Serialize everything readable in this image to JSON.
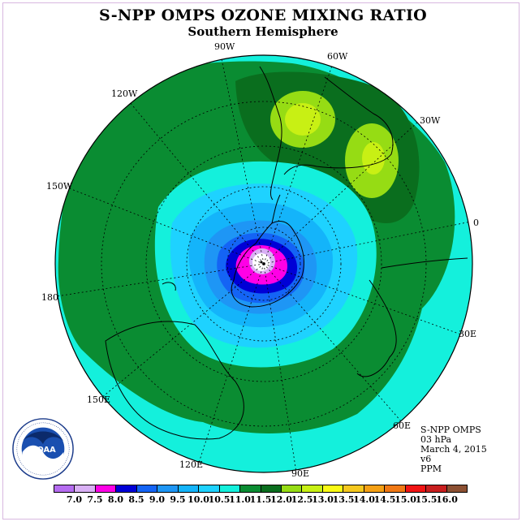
{
  "title": "S-NPP OMPS OZONE MIXING RATIO",
  "subtitle": "Southern Hemisphere",
  "info": {
    "line1": "S-NPP OMPS",
    "line2": "03 hPa",
    "line3": "March 4, 2015",
    "line4": "v6",
    "line5": "PPM"
  },
  "longitude_labels": {
    "w90": "90W",
    "w60": "60W",
    "w30": "30W",
    "e0": "0",
    "e30": "30E",
    "e60": "60E",
    "e90": "90E",
    "e120": "120E",
    "e150": "150E",
    "e180": "180",
    "w150": "150W",
    "w120": "120W"
  },
  "colorbar": {
    "colors": [
      "#b56cf0",
      "#d9b0f5",
      "#ff00e6",
      "#0000d6",
      "#1464f5",
      "#1e96f5",
      "#14b4fa",
      "#1ed2ff",
      "#14f0dc",
      "#0a8c32",
      "#0a6e1e",
      "#96dc14",
      "#c8f014",
      "#fafa14",
      "#f5c81e",
      "#f5a014",
      "#f07814",
      "#f01414",
      "#c81e1e",
      "#8c5032"
    ],
    "ticks": [
      "7.0",
      "7.5",
      "8.0",
      "8.5",
      "9.0",
      "9.5",
      "10.0",
      "10.5",
      "11.0",
      "11.5",
      "12.0",
      "12.5",
      "13.0",
      "13.5",
      "14.0",
      "14.5",
      "15.0",
      "15.5",
      "16.0"
    ]
  },
  "logo": {
    "name": "NOAA",
    "ring_text": "NATIONAL OCEANIC AND ATMOSPHERIC ADMINISTRATION · U.S. DEPARTMENT OF COMMERCE"
  },
  "map": {
    "projection": "south polar stereographic",
    "fields": [
      {
        "level": "11.5-12.0",
        "color": "#0a8c32",
        "region": "outer ring mid-latitudes"
      },
      {
        "level": "12.0-12.5",
        "color": "#0a6e1e",
        "region": "South Atlantic / South America band"
      },
      {
        "level": "12.5-13.0",
        "color": "#96dc14",
        "region": "two maxima near 60W and 30W"
      },
      {
        "level": "13.0-13.5",
        "color": "#c8f014",
        "region": "cores of the two maxima"
      },
      {
        "level": "11.0-11.5",
        "color": "#14f0dc",
        "region": "low latitudes and inner ring"
      },
      {
        "level": "8.0-10.5",
        "color": "#1464f5",
        "region": "polar minimum over Antarctica"
      }
    ]
  }
}
